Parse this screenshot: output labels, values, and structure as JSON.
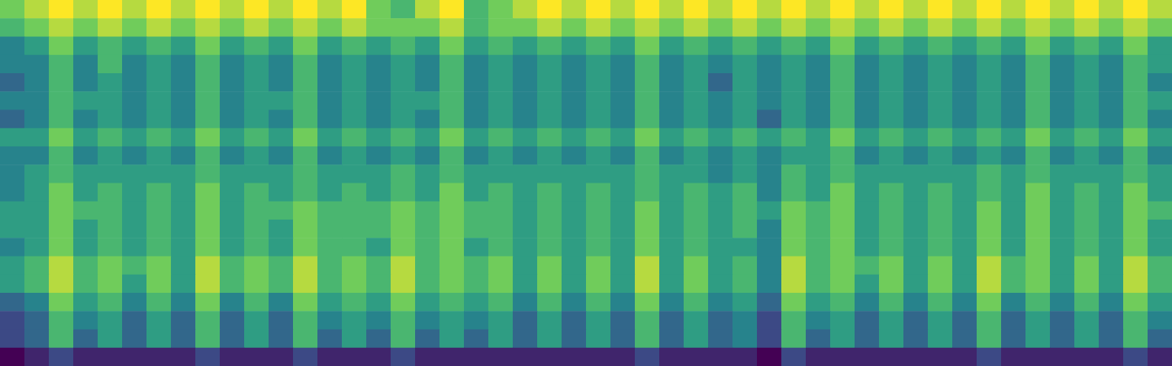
{
  "chart_data": {
    "type": "heatmap",
    "color": "viridis",
    "tick_labels": false,
    "cells": [
      [
        7,
        8,
        9,
        8,
        9,
        8,
        9,
        8,
        9,
        8,
        9,
        8,
        9,
        8,
        9,
        7,
        6,
        8,
        9,
        6,
        7,
        8,
        9,
        8,
        9,
        8,
        9,
        8,
        9,
        8,
        9,
        8,
        9,
        8,
        9,
        8,
        9,
        8,
        9,
        8,
        9,
        8,
        9,
        8,
        9,
        8,
        9,
        8
      ],
      [
        6,
        7,
        8,
        7,
        8,
        7,
        8,
        7,
        8,
        7,
        8,
        7,
        8,
        7,
        8,
        7,
        7,
        7,
        8,
        6,
        7,
        7,
        8,
        7,
        8,
        7,
        8,
        7,
        8,
        7,
        8,
        7,
        8,
        7,
        8,
        7,
        8,
        7,
        8,
        7,
        8,
        7,
        8,
        7,
        8,
        7,
        8,
        7
      ],
      [
        4,
        5,
        7,
        5,
        6,
        5,
        6,
        5,
        7,
        5,
        6,
        5,
        7,
        5,
        6,
        5,
        6,
        5,
        7,
        5,
        6,
        5,
        6,
        5,
        6,
        5,
        7,
        5,
        6,
        5,
        6,
        5,
        6,
        5,
        7,
        5,
        6,
        5,
        6,
        5,
        6,
        5,
        7,
        5,
        6,
        5,
        7,
        5
      ],
      [
        4,
        4,
        6,
        4,
        6,
        4,
        5,
        4,
        6,
        4,
        5,
        4,
        6,
        4,
        5,
        4,
        5,
        4,
        6,
        4,
        5,
        4,
        5,
        4,
        5,
        4,
        6,
        4,
        5,
        4,
        5,
        4,
        5,
        4,
        6,
        4,
        5,
        4,
        5,
        4,
        5,
        4,
        6,
        4,
        5,
        4,
        6,
        5
      ],
      [
        3,
        4,
        6,
        4,
        5,
        4,
        5,
        4,
        6,
        4,
        5,
        4,
        6,
        4,
        5,
        4,
        5,
        4,
        6,
        4,
        5,
        4,
        5,
        4,
        5,
        4,
        6,
        4,
        5,
        3,
        5,
        4,
        5,
        4,
        6,
        4,
        5,
        4,
        5,
        4,
        5,
        4,
        6,
        4,
        5,
        4,
        6,
        4
      ],
      [
        4,
        4,
        6,
        5,
        5,
        4,
        5,
        4,
        6,
        4,
        5,
        5,
        6,
        4,
        5,
        4,
        5,
        5,
        6,
        4,
        5,
        4,
        5,
        4,
        5,
        4,
        6,
        4,
        5,
        4,
        5,
        4,
        5,
        4,
        6,
        4,
        5,
        4,
        5,
        4,
        5,
        4,
        6,
        4,
        5,
        4,
        6,
        5
      ],
      [
        3,
        4,
        6,
        4,
        5,
        4,
        5,
        4,
        6,
        4,
        5,
        4,
        6,
        4,
        5,
        4,
        5,
        4,
        6,
        4,
        5,
        4,
        5,
        4,
        5,
        4,
        6,
        4,
        5,
        4,
        5,
        3,
        5,
        4,
        6,
        4,
        5,
        4,
        5,
        4,
        5,
        4,
        6,
        4,
        5,
        4,
        6,
        4
      ],
      [
        5,
        5,
        7,
        5,
        6,
        5,
        6,
        5,
        7,
        5,
        6,
        5,
        7,
        5,
        6,
        5,
        6,
        5,
        7,
        5,
        6,
        5,
        6,
        5,
        6,
        5,
        7,
        5,
        6,
        5,
        6,
        5,
        6,
        5,
        7,
        5,
        6,
        5,
        6,
        5,
        6,
        5,
        7,
        5,
        6,
        5,
        7,
        5
      ],
      [
        4,
        4,
        6,
        4,
        5,
        4,
        5,
        4,
        6,
        4,
        5,
        4,
        6,
        4,
        5,
        4,
        5,
        4,
        6,
        4,
        5,
        4,
        5,
        4,
        5,
        4,
        6,
        4,
        5,
        4,
        5,
        4,
        5,
        5,
        6,
        4,
        5,
        4,
        5,
        4,
        5,
        4,
        6,
        4,
        5,
        4,
        6,
        4
      ],
      [
        4,
        5,
        6,
        5,
        5,
        5,
        5,
        5,
        6,
        5,
        5,
        5,
        6,
        5,
        5,
        5,
        6,
        5,
        6,
        5,
        5,
        5,
        5,
        5,
        5,
        5,
        6,
        5,
        5,
        4,
        5,
        4,
        6,
        5,
        6,
        5,
        5,
        5,
        5,
        5,
        6,
        5,
        6,
        5,
        5,
        5,
        6,
        5
      ],
      [
        4,
        5,
        7,
        5,
        6,
        5,
        6,
        5,
        7,
        5,
        6,
        5,
        6,
        5,
        6,
        5,
        6,
        5,
        7,
        5,
        6,
        5,
        6,
        5,
        6,
        5,
        6,
        5,
        6,
        5,
        6,
        4,
        6,
        5,
        7,
        5,
        6,
        5,
        6,
        5,
        6,
        5,
        7,
        5,
        6,
        5,
        7,
        5
      ],
      [
        5,
        5,
        7,
        6,
        6,
        5,
        6,
        5,
        7,
        5,
        6,
        6,
        7,
        6,
        6,
        6,
        7,
        6,
        7,
        6,
        6,
        5,
        6,
        5,
        6,
        5,
        7,
        5,
        6,
        5,
        6,
        5,
        7,
        6,
        7,
        5,
        6,
        5,
        6,
        5,
        7,
        5,
        7,
        5,
        6,
        5,
        7,
        6
      ],
      [
        5,
        5,
        7,
        5,
        6,
        5,
        6,
        5,
        7,
        5,
        6,
        5,
        7,
        6,
        6,
        6,
        7,
        6,
        7,
        6,
        6,
        5,
        6,
        5,
        6,
        5,
        7,
        5,
        6,
        5,
        6,
        4,
        7,
        6,
        7,
        5,
        6,
        5,
        6,
        5,
        7,
        5,
        7,
        5,
        6,
        5,
        7,
        5
      ],
      [
        4,
        5,
        7,
        5,
        6,
        5,
        6,
        5,
        7,
        5,
        6,
        5,
        7,
        6,
        6,
        5,
        7,
        6,
        7,
        5,
        6,
        5,
        6,
        5,
        6,
        5,
        7,
        5,
        6,
        5,
        5,
        4,
        7,
        6,
        7,
        5,
        6,
        5,
        6,
        5,
        7,
        5,
        7,
        5,
        6,
        5,
        7,
        5
      ],
      [
        5,
        6,
        8,
        6,
        7,
        6,
        7,
        5,
        8,
        6,
        7,
        6,
        8,
        6,
        7,
        6,
        8,
        6,
        7,
        6,
        7,
        5,
        7,
        5,
        7,
        5,
        8,
        5,
        7,
        5,
        6,
        4,
        8,
        6,
        7,
        6,
        7,
        5,
        7,
        5,
        8,
        6,
        7,
        5,
        7,
        5,
        8,
        6
      ],
      [
        5,
        6,
        8,
        6,
        7,
        5,
        7,
        5,
        8,
        6,
        7,
        6,
        8,
        6,
        7,
        6,
        8,
        6,
        7,
        6,
        7,
        5,
        7,
        5,
        7,
        5,
        8,
        5,
        7,
        5,
        6,
        4,
        8,
        6,
        7,
        5,
        7,
        5,
        7,
        5,
        8,
        6,
        7,
        5,
        7,
        5,
        8,
        6
      ],
      [
        3,
        4,
        7,
        5,
        6,
        4,
        6,
        4,
        7,
        4,
        6,
        4,
        7,
        5,
        6,
        5,
        7,
        5,
        6,
        5,
        6,
        4,
        6,
        4,
        6,
        4,
        7,
        4,
        6,
        4,
        5,
        3,
        7,
        5,
        6,
        4,
        6,
        4,
        6,
        4,
        7,
        4,
        6,
        4,
        6,
        4,
        7,
        5
      ],
      [
        2,
        3,
        6,
        4,
        5,
        3,
        5,
        3,
        6,
        3,
        5,
        3,
        6,
        4,
        5,
        4,
        6,
        4,
        5,
        4,
        5,
        3,
        5,
        3,
        5,
        3,
        6,
        3,
        5,
        3,
        4,
        2,
        6,
        4,
        5,
        3,
        5,
        3,
        5,
        3,
        6,
        3,
        5,
        3,
        5,
        3,
        6,
        4
      ],
      [
        2,
        3,
        6,
        3,
        5,
        3,
        5,
        3,
        6,
        3,
        5,
        3,
        6,
        3,
        5,
        3,
        6,
        3,
        5,
        3,
        5,
        3,
        5,
        3,
        5,
        3,
        6,
        3,
        5,
        3,
        4,
        2,
        6,
        3,
        5,
        3,
        5,
        3,
        5,
        3,
        6,
        3,
        5,
        3,
        5,
        3,
        6,
        3
      ],
      [
        0,
        1,
        2,
        1,
        1,
        1,
        1,
        1,
        2,
        1,
        1,
        1,
        2,
        1,
        1,
        1,
        2,
        1,
        1,
        1,
        1,
        1,
        1,
        1,
        1,
        1,
        2,
        1,
        1,
        1,
        1,
        0,
        2,
        1,
        1,
        1,
        1,
        1,
        1,
        1,
        2,
        1,
        1,
        1,
        1,
        1,
        2,
        1
      ]
    ]
  }
}
